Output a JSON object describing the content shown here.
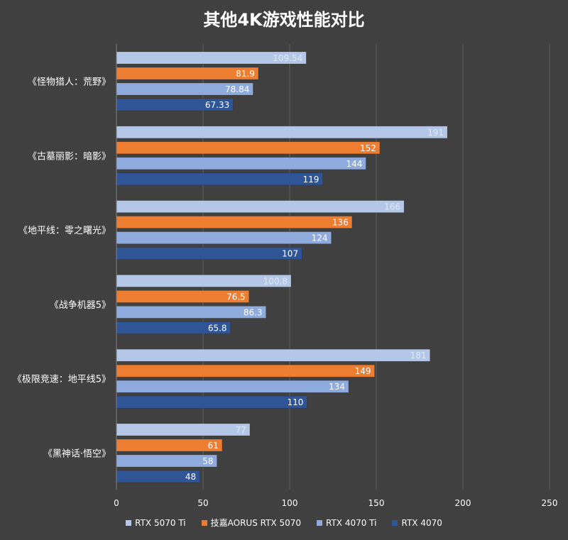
{
  "chart_data": {
    "type": "bar",
    "orientation": "horizontal",
    "title": "其他4K游戏性能对比",
    "categories": [
      "《怪物猎人：荒野》",
      "《古墓丽影：暗影》",
      "《地平线：零之曙光》",
      "《战争机器5》",
      "《极限竞速：地平线5》",
      "《黑神话·悟空》"
    ],
    "series": [
      {
        "name": "RTX 5070 Ti",
        "color": "#b4c7e7",
        "labels": [
          "109.54",
          "191",
          "166",
          "100.8",
          "181",
          "77"
        ],
        "values": [
          109.54,
          191,
          166,
          100.8,
          181,
          77
        ]
      },
      {
        "name": "技嘉AORUS RTX 5070",
        "color": "#ed7d31",
        "labels": [
          "81.9",
          "152",
          "136",
          "76.5",
          "149",
          "61"
        ],
        "values": [
          81.9,
          152,
          136,
          76.5,
          149,
          61
        ]
      },
      {
        "name": "RTX 4070 Ti",
        "color": "#8faadc",
        "labels": [
          "78.84",
          "144",
          "124",
          "86.3",
          "134",
          "58"
        ],
        "values": [
          78.84,
          144,
          124,
          86.3,
          134,
          58
        ]
      },
      {
        "name": "RTX 4070",
        "color": "#2f5597",
        "labels": [
          "67.33",
          "119",
          "107",
          "65.8",
          "110",
          "48"
        ],
        "values": [
          67.33,
          119,
          107,
          65.8,
          110,
          48
        ]
      }
    ],
    "xlim": [
      0,
      250
    ],
    "xticks": [
      "0",
      "50",
      "100",
      "150",
      "200",
      "250"
    ],
    "grid": true,
    "legend_position": "bottom"
  }
}
